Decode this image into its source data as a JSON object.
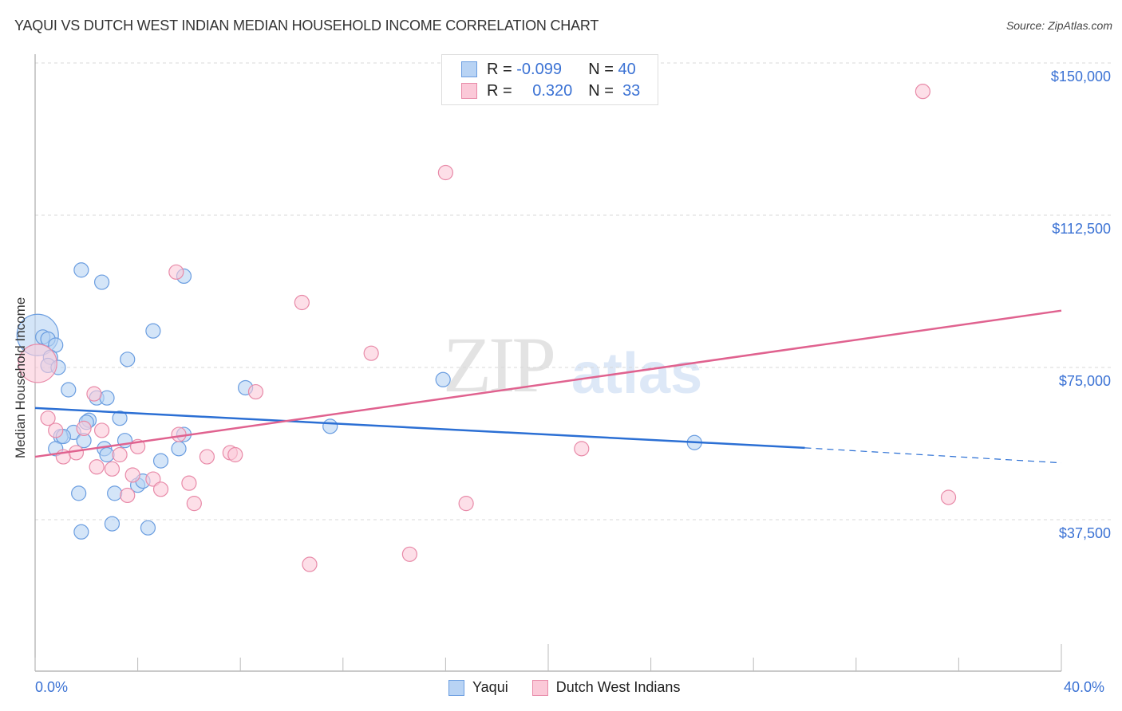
{
  "header": {
    "title": "YAQUI VS DUTCH WEST INDIAN MEDIAN HOUSEHOLD INCOME CORRELATION CHART",
    "source": "Source: ZipAtlas.com"
  },
  "watermark": {
    "zip": "ZIP",
    "atlas": "atlas"
  },
  "legend_box": {
    "rows": [
      {
        "r_label": "R =",
        "r_value": "-0.099",
        "n_label": "N =",
        "n_value": "40",
        "color": "#b8d3f4",
        "border": "#6a9de0"
      },
      {
        "r_label": "R =",
        "r_value": "0.320",
        "n_label": "N =",
        "n_value": "33",
        "color": "#fbc9d8",
        "border": "#e88aa8"
      }
    ]
  },
  "bottom_legend": {
    "items": [
      {
        "label": "Yaqui"
      },
      {
        "label": "Dutch West Indians"
      }
    ]
  },
  "axes": {
    "ylabel": "Median Household Income",
    "yticks": [
      "$150,000",
      "$112,500",
      "$75,000",
      "$37,500"
    ],
    "xticks": [
      "0.0%",
      "40.0%"
    ]
  },
  "colors": {
    "yaqui": "#6a9de0",
    "yaqui_fill": "#b8d3f4",
    "yaqui_line": "#2b6fd4",
    "dwi": "#e88aa8",
    "dwi_fill": "#fbc9d8",
    "dwi_line": "#e0628f",
    "tick_label": "#3b72d4"
  },
  "chart_data": {
    "type": "scatter",
    "title": "YAQUI VS DUTCH WEST INDIAN MEDIAN HOUSEHOLD INCOME CORRELATION CHART",
    "xlabel": "",
    "ylabel": "Median Household Income",
    "xlim": [
      0,
      40
    ],
    "ylim": [
      0,
      153500
    ],
    "ytick_values": [
      37500,
      75000,
      112500,
      150000
    ],
    "grid": true,
    "legend_position": "bottom",
    "series": [
      {
        "name": "Yaqui",
        "R": -0.099,
        "N": 40,
        "trend": {
          "x": [
            0,
            30,
            40
          ],
          "y": [
            65000,
            55200,
            51500
          ],
          "dashed_after_x": 30
        },
        "points": [
          [
            0.1,
            83000,
            26
          ],
          [
            0.3,
            82500
          ],
          [
            0.5,
            82000
          ],
          [
            0.8,
            80500
          ],
          [
            0.6,
            77500
          ],
          [
            0.5,
            75500
          ],
          [
            0.9,
            75000
          ],
          [
            1.3,
            69500
          ],
          [
            1.8,
            99000
          ],
          [
            2.6,
            96000
          ],
          [
            3.6,
            77000
          ],
          [
            4.6,
            84000
          ],
          [
            5.8,
            97500
          ],
          [
            2.4,
            67500
          ],
          [
            2.8,
            67500
          ],
          [
            3.3,
            62500
          ],
          [
            2.1,
            62000
          ],
          [
            2.0,
            61500
          ],
          [
            1.5,
            59000
          ],
          [
            1.9,
            57000
          ],
          [
            3.5,
            57000
          ],
          [
            1.0,
            58000
          ],
          [
            1.1,
            58000
          ],
          [
            0.8,
            55000
          ],
          [
            2.7,
            55000
          ],
          [
            2.8,
            53500
          ],
          [
            5.6,
            55000
          ],
          [
            4.9,
            52000
          ],
          [
            5.8,
            58500
          ],
          [
            4.0,
            46000
          ],
          [
            4.2,
            47000
          ],
          [
            3.1,
            44000
          ],
          [
            1.7,
            44000
          ],
          [
            3.0,
            36500
          ],
          [
            4.4,
            35500
          ],
          [
            1.8,
            34500
          ],
          [
            8.2,
            70000
          ],
          [
            11.5,
            60500
          ],
          [
            15.9,
            72000
          ],
          [
            25.7,
            56500
          ]
        ]
      },
      {
        "name": "Dutch West Indians",
        "R": 0.32,
        "N": 33,
        "trend": {
          "x": [
            0,
            40
          ],
          "y": [
            53000,
            89000
          ]
        },
        "points": [
          [
            0.1,
            76000,
            24
          ],
          [
            0.5,
            62500
          ],
          [
            0.8,
            59500
          ],
          [
            1.1,
            53000
          ],
          [
            1.6,
            54000
          ],
          [
            1.9,
            60000
          ],
          [
            2.4,
            50500
          ],
          [
            2.3,
            68500
          ],
          [
            2.6,
            59500
          ],
          [
            3.0,
            50000
          ],
          [
            3.3,
            53500
          ],
          [
            3.8,
            48500
          ],
          [
            4.0,
            55500
          ],
          [
            3.6,
            43500
          ],
          [
            4.6,
            47500
          ],
          [
            4.9,
            45000
          ],
          [
            5.6,
            58500
          ],
          [
            6.0,
            46500
          ],
          [
            6.2,
            41500
          ],
          [
            6.7,
            53000
          ],
          [
            7.6,
            54000
          ],
          [
            7.8,
            53500
          ],
          [
            8.6,
            69000
          ],
          [
            10.4,
            91000
          ],
          [
            13.1,
            78500
          ],
          [
            14.6,
            29000
          ],
          [
            16.0,
            123000
          ],
          [
            16.8,
            41500
          ],
          [
            21.3,
            55000
          ],
          [
            34.6,
            143000
          ],
          [
            35.6,
            43000
          ],
          [
            5.5,
            98500
          ],
          [
            10.7,
            26500
          ]
        ]
      }
    ]
  }
}
